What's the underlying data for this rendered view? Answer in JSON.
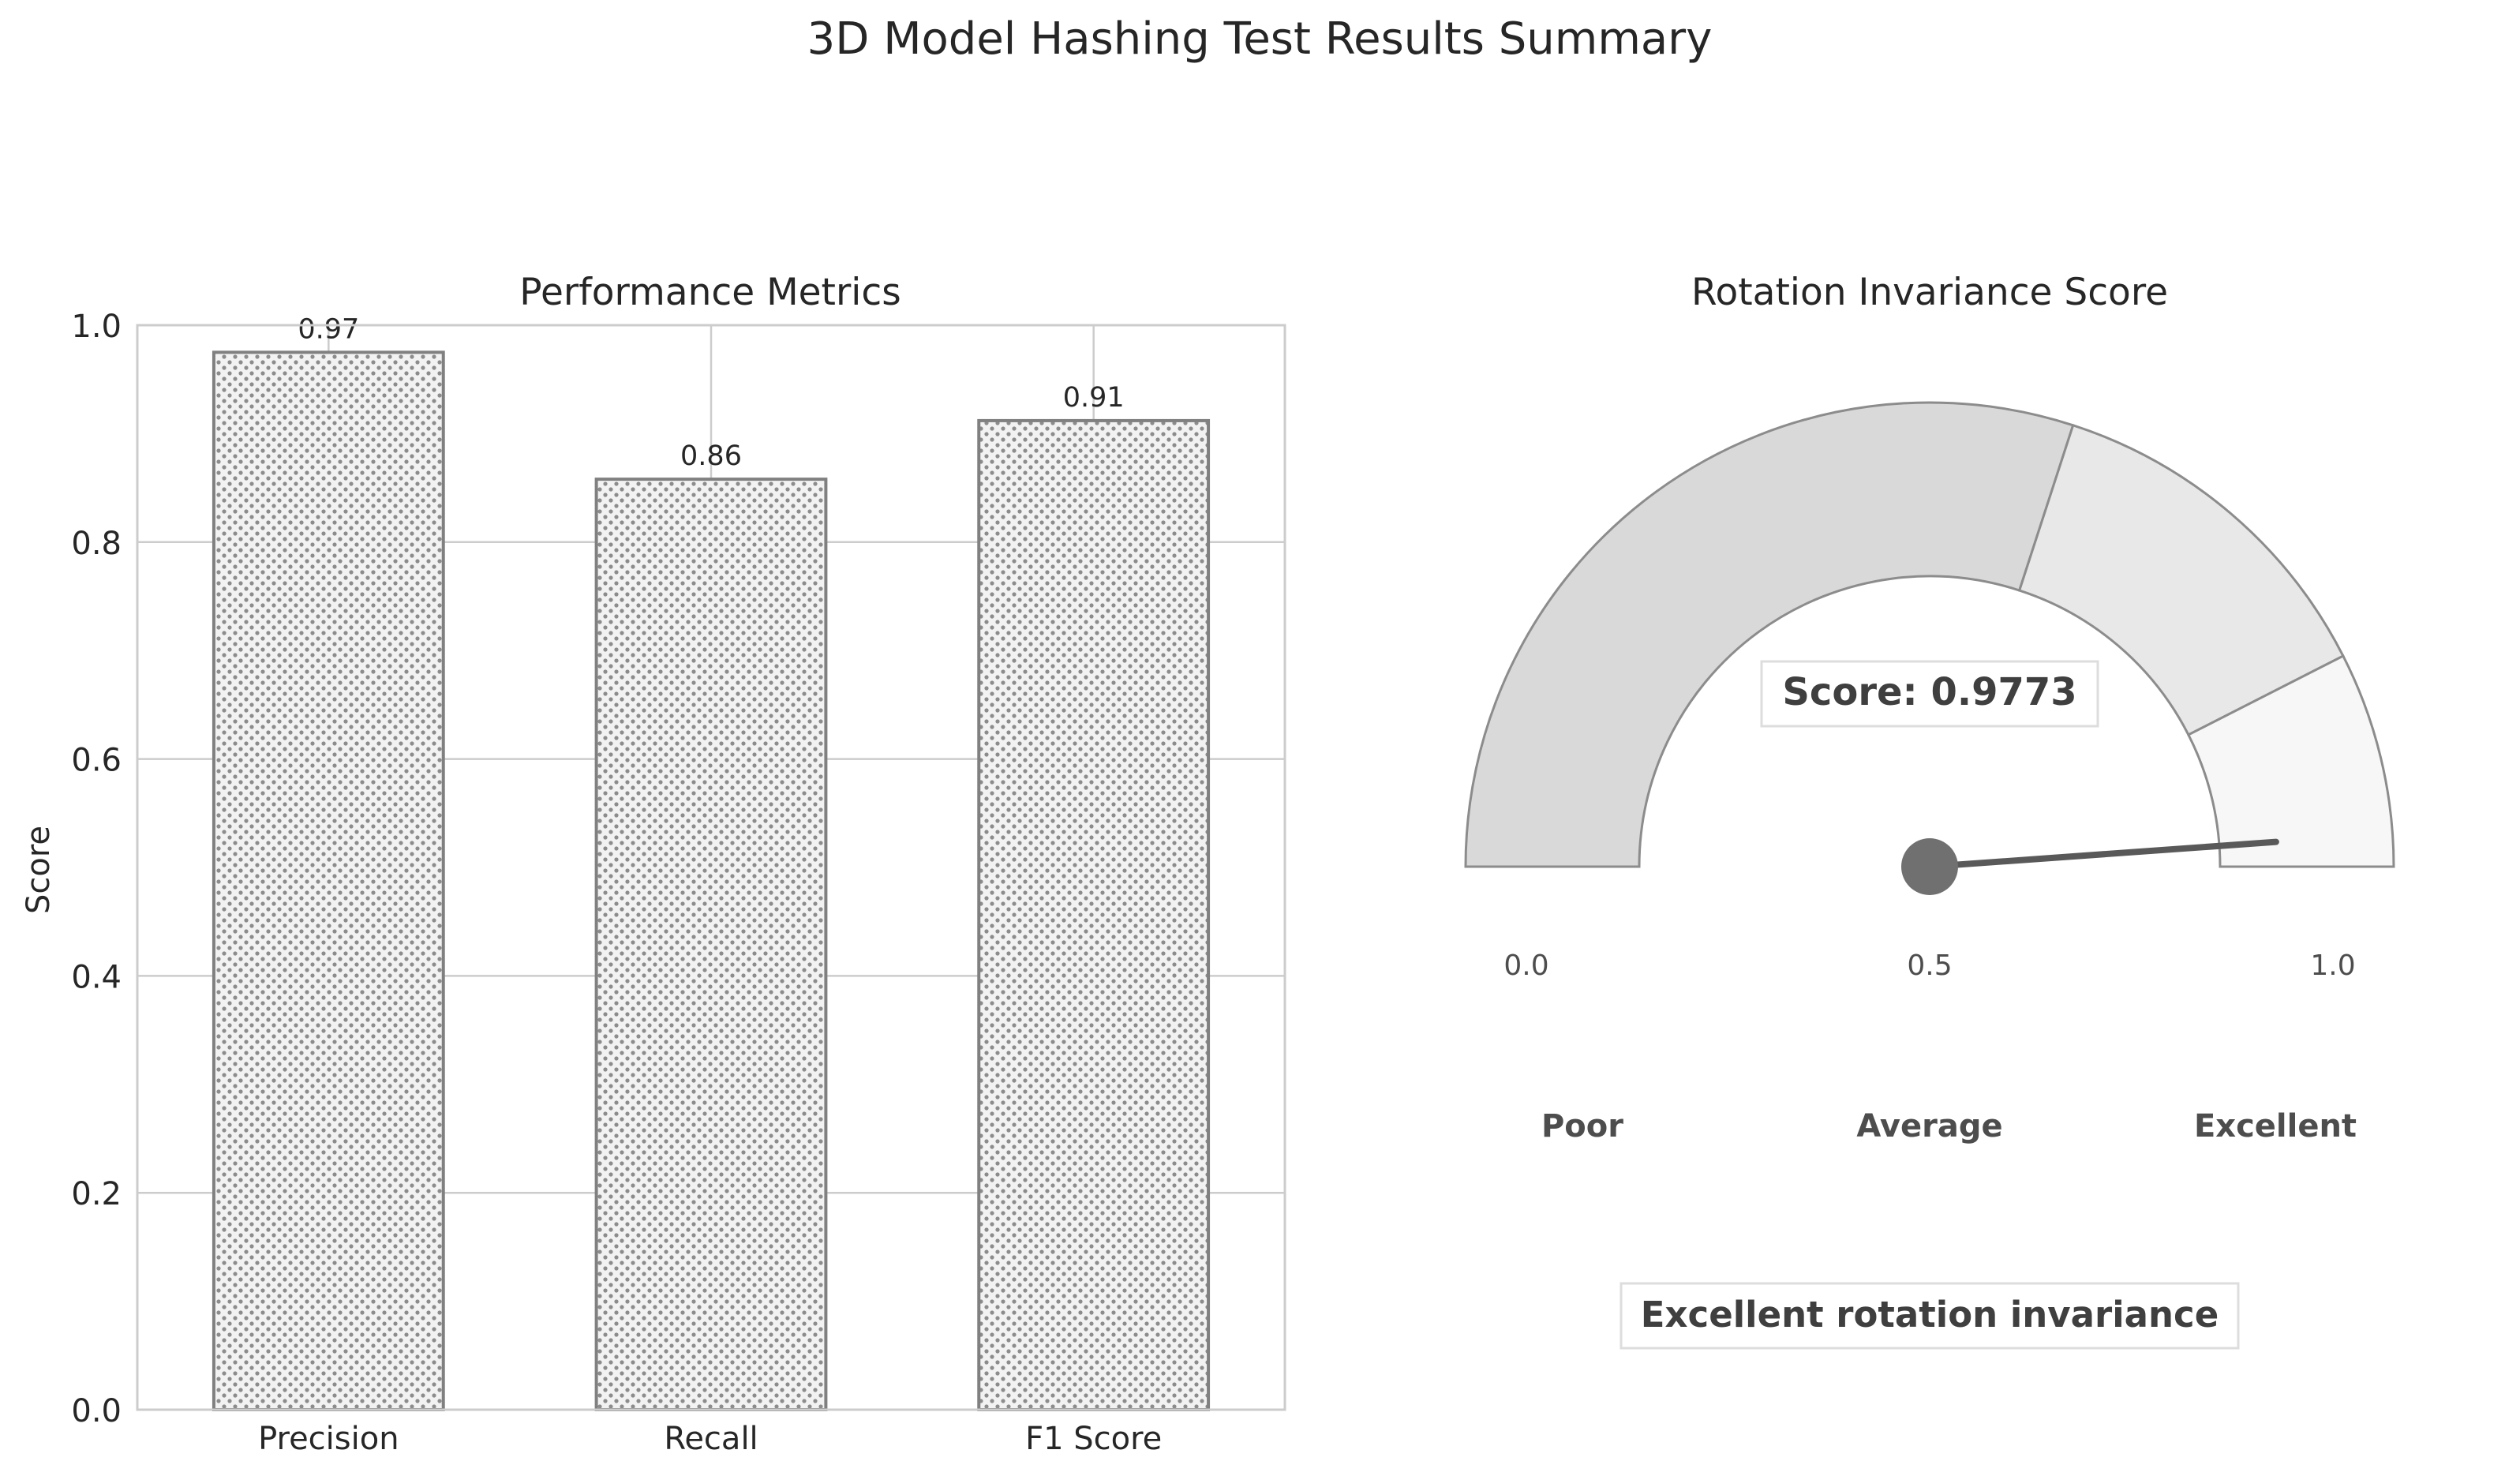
{
  "figure": {
    "title": "3D Model Hashing Test Results Summary"
  },
  "chart_data": [
    {
      "type": "bar",
      "title": "Performance Metrics",
      "xlabel": "",
      "ylabel": "Score",
      "categories": [
        "Precision",
        "Recall",
        "F1 Score"
      ],
      "values": [
        0.975,
        0.858,
        0.912
      ],
      "data_labels": [
        "0.97",
        "0.86",
        "0.91"
      ],
      "ylim": [
        0,
        1.0
      ],
      "yticks": [
        "0.0",
        "0.2",
        "0.4",
        "0.6",
        "0.8",
        "1.0"
      ],
      "ytick_values": [
        0,
        0.2,
        0.4,
        0.6,
        0.8,
        1.0
      ],
      "grid": true,
      "bar_fill": "#f2f2f2",
      "bar_edge": "#808080",
      "hatch": "dots"
    },
    {
      "type": "gauge",
      "title": "Rotation Invariance Score",
      "score": 0.9773,
      "score_label": "Score: 0.9773",
      "range": [
        0,
        1
      ],
      "zones": [
        {
          "name": "Poor",
          "from": 0,
          "to": 0.6,
          "color": "#d9d9d9"
        },
        {
          "name": "Average",
          "from": 0.6,
          "to": 0.85,
          "color": "#e8e8e8"
        },
        {
          "name": "Excellent",
          "from": 0.85,
          "to": 1.0,
          "color": "#f7f7f7"
        }
      ],
      "tick_labels": [
        "0.0",
        "0.5",
        "1.0"
      ],
      "zone_labels": [
        "Poor",
        "Average",
        "Excellent"
      ],
      "verdict": "Excellent rotation invariance",
      "needle_color": "#595959",
      "hub_color": "#707070"
    }
  ]
}
